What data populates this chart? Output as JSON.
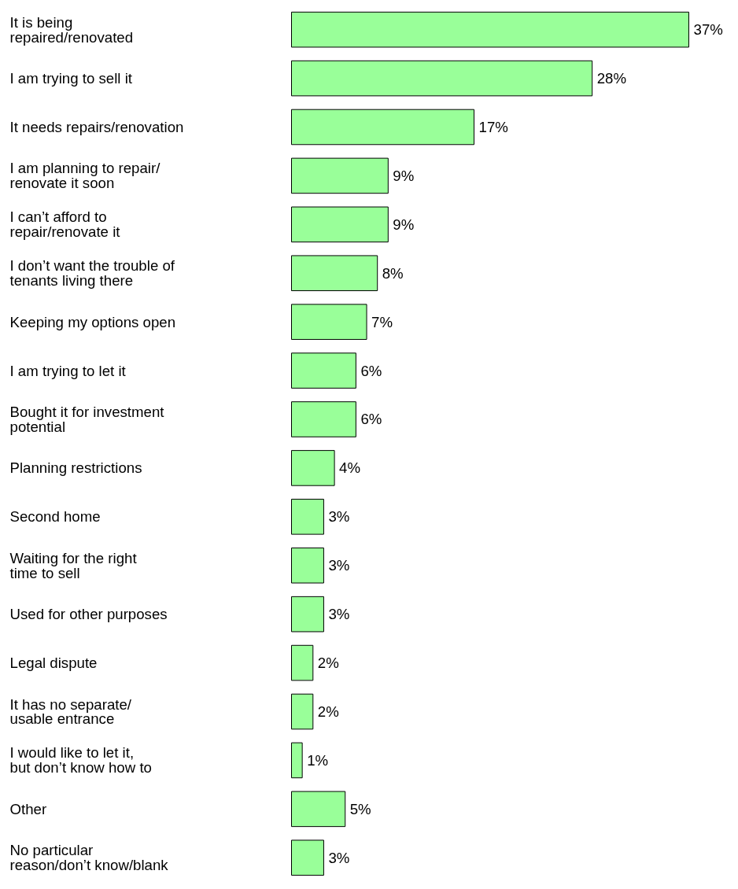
{
  "chart_data": {
    "type": "bar",
    "orientation": "horizontal",
    "categories": [
      "It is being\nrepaired/renovated",
      "I am trying to sell it",
      "It needs repairs/renovation",
      "I am planning to repair/\nrenovate it soon",
      "I can’t afford to\nrepair/renovate it",
      "I don’t want the trouble of\ntenants living there",
      "Keeping my options open",
      "I am trying to let it",
      "Bought it for investment\npotential",
      "Planning restrictions",
      "Second home",
      "Waiting for the right\ntime to sell",
      "Used for other purposes",
      "Legal dispute",
      "It has no separate/\nusable entrance",
      "I would like to let it,\nbut don’t know how to",
      "Other",
      "No particular\nreason/don’t know/blank"
    ],
    "values": [
      37,
      28,
      17,
      9,
      9,
      8,
      7,
      6,
      6,
      4,
      3,
      3,
      3,
      2,
      2,
      1,
      5,
      3
    ],
    "value_labels": [
      "37%",
      "28%",
      "17%",
      "9%",
      "9%",
      "8%",
      "7%",
      "6%",
      "6%",
      "4%",
      "3%",
      "3%",
      "3%",
      "2%",
      "2%",
      "1%",
      "5%",
      "3%"
    ],
    "color": "#99ff99"
  }
}
